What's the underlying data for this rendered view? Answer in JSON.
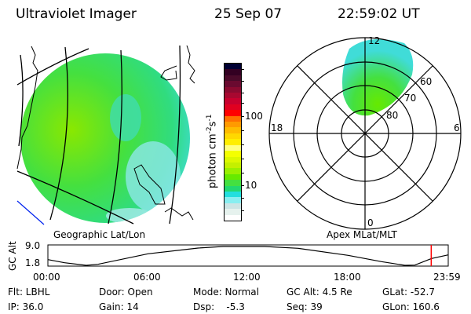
{
  "header": {
    "instrument": "Ultraviolet Imager",
    "date": "25 Sep 07",
    "time": "22:59:02 UT"
  },
  "colorbar": {
    "label": "photon cm-2s-1",
    "label_main": "photon cm",
    "label_exp1": "-2",
    "label_s": "s",
    "label_exp2": "-1",
    "ticks": [
      "100",
      "10"
    ],
    "colors": [
      "#000033",
      "#330022",
      "#4a0a2a",
      "#6a0a30",
      "#8a0a30",
      "#a80830",
      "#c8002e",
      "#e00020",
      "#ff0000",
      "#ff7000",
      "#ff9a00",
      "#ffbb00",
      "#ffd800",
      "#ffee00",
      "#ffff80",
      "#f4ff00",
      "#dcf800",
      "#c4f000",
      "#9af000",
      "#66ea00",
      "#44e040",
      "#22d870",
      "#22dede",
      "#88eef0",
      "#cce4e4",
      "#e6f2ee",
      "#ffffff"
    ]
  },
  "left_panel": {
    "caption": "Geographic Lat/Lon"
  },
  "right_panel": {
    "caption": "Apex MLat/MLT",
    "mlt_labels": {
      "top": "12",
      "left": "18",
      "right": "6",
      "bottom": "0"
    },
    "lat_labels": [
      "60",
      "70",
      "80"
    ]
  },
  "chart_data": {
    "type": "line",
    "title": "",
    "ylabel": "GC Alt",
    "yticks": [
      "9.0",
      "1.8"
    ],
    "ylim": [
      1.8,
      9.0
    ],
    "xlim": [
      0,
      24
    ],
    "xticks": [
      "00:00",
      "06:00",
      "12:00",
      "18:00",
      "23:59"
    ],
    "series": [
      {
        "name": "GC Alt (Re)",
        "x": [
          0,
          1,
          2.3,
          3,
          6,
          9,
          10.5,
          13,
          15,
          18,
          20,
          21.4,
          22,
          23,
          24
        ],
        "values": [
          4.0,
          2.8,
          1.8,
          2.2,
          6.2,
          8.4,
          9.0,
          9.0,
          8.3,
          5.6,
          3.2,
          1.8,
          1.9,
          4.4,
          5.8
        ]
      }
    ],
    "marker": {
      "time_hours": 22.98,
      "color": "#ff0000"
    }
  },
  "info": {
    "row1": [
      "Flt: LBHL",
      "Door: Open",
      "Mode: Normal",
      "GC Alt: 4.5 Re",
      "GLat: -52.7"
    ],
    "row2": [
      "IP: 36.0",
      "Gain: 14",
      "Dsp:    -5.3",
      "Seq: 39",
      "GLon: 160.6"
    ]
  }
}
